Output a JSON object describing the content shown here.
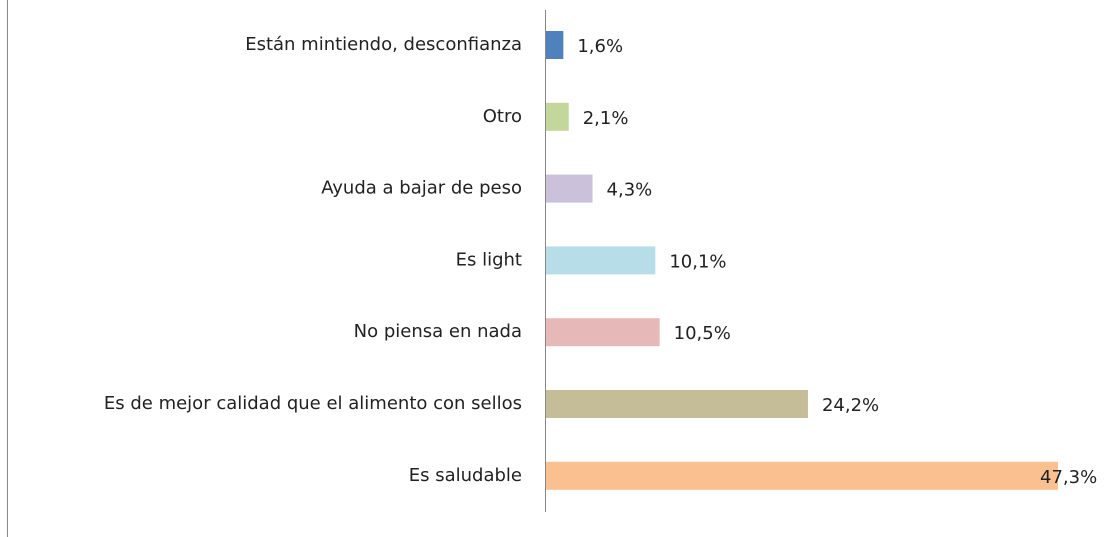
{
  "chart_data": {
    "type": "barh",
    "categories": [
      "Están mintiendo, desconfianza",
      "Otro",
      "Ayuda a bajar de peso",
      "Es light",
      "No piensa en nada",
      "Es de mejor calidad que el alimento con sellos",
      "Es saludable"
    ],
    "values": [
      1.6,
      2.1,
      4.3,
      10.1,
      10.5,
      24.2,
      47.3
    ],
    "value_labels": [
      "1,6%",
      "2,1%",
      "4,3%",
      "10,1%",
      "10,5%",
      "24,2%",
      "47,3%"
    ],
    "colors": [
      "#4f81bd",
      "#c3d69b",
      "#ccc1da",
      "#b7dde8",
      "#e6b9b8",
      "#c4bd97",
      "#fac090"
    ]
  }
}
